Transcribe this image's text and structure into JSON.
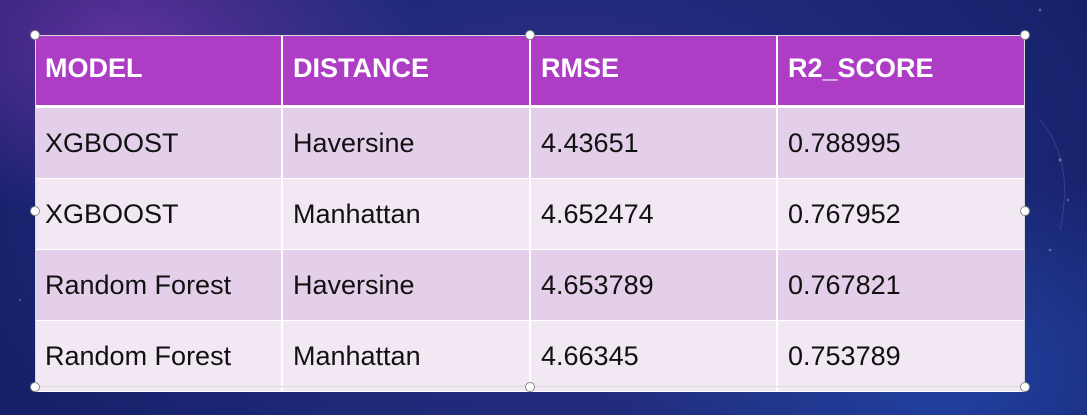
{
  "table": {
    "headers": [
      "MODEL",
      "DISTANCE",
      "RMSE",
      "R2_SCORE"
    ],
    "rows": [
      [
        "XGBOOST",
        "Haversine",
        "4.43651",
        "0.788995"
      ],
      [
        "XGBOOST",
        "Manhattan",
        "4.652474",
        "0.767952"
      ],
      [
        "Random Forest",
        "Haversine",
        "4.653789",
        "0.767821"
      ],
      [
        "Random Forest",
        "Manhattan",
        "4.66345",
        "0.753789"
      ]
    ]
  },
  "colors": {
    "header_bg": "#ad3dc4",
    "row_odd_bg": "#e3cfe9",
    "row_even_bg": "#f2e8f4",
    "slide_bg": "#1e2a78"
  }
}
